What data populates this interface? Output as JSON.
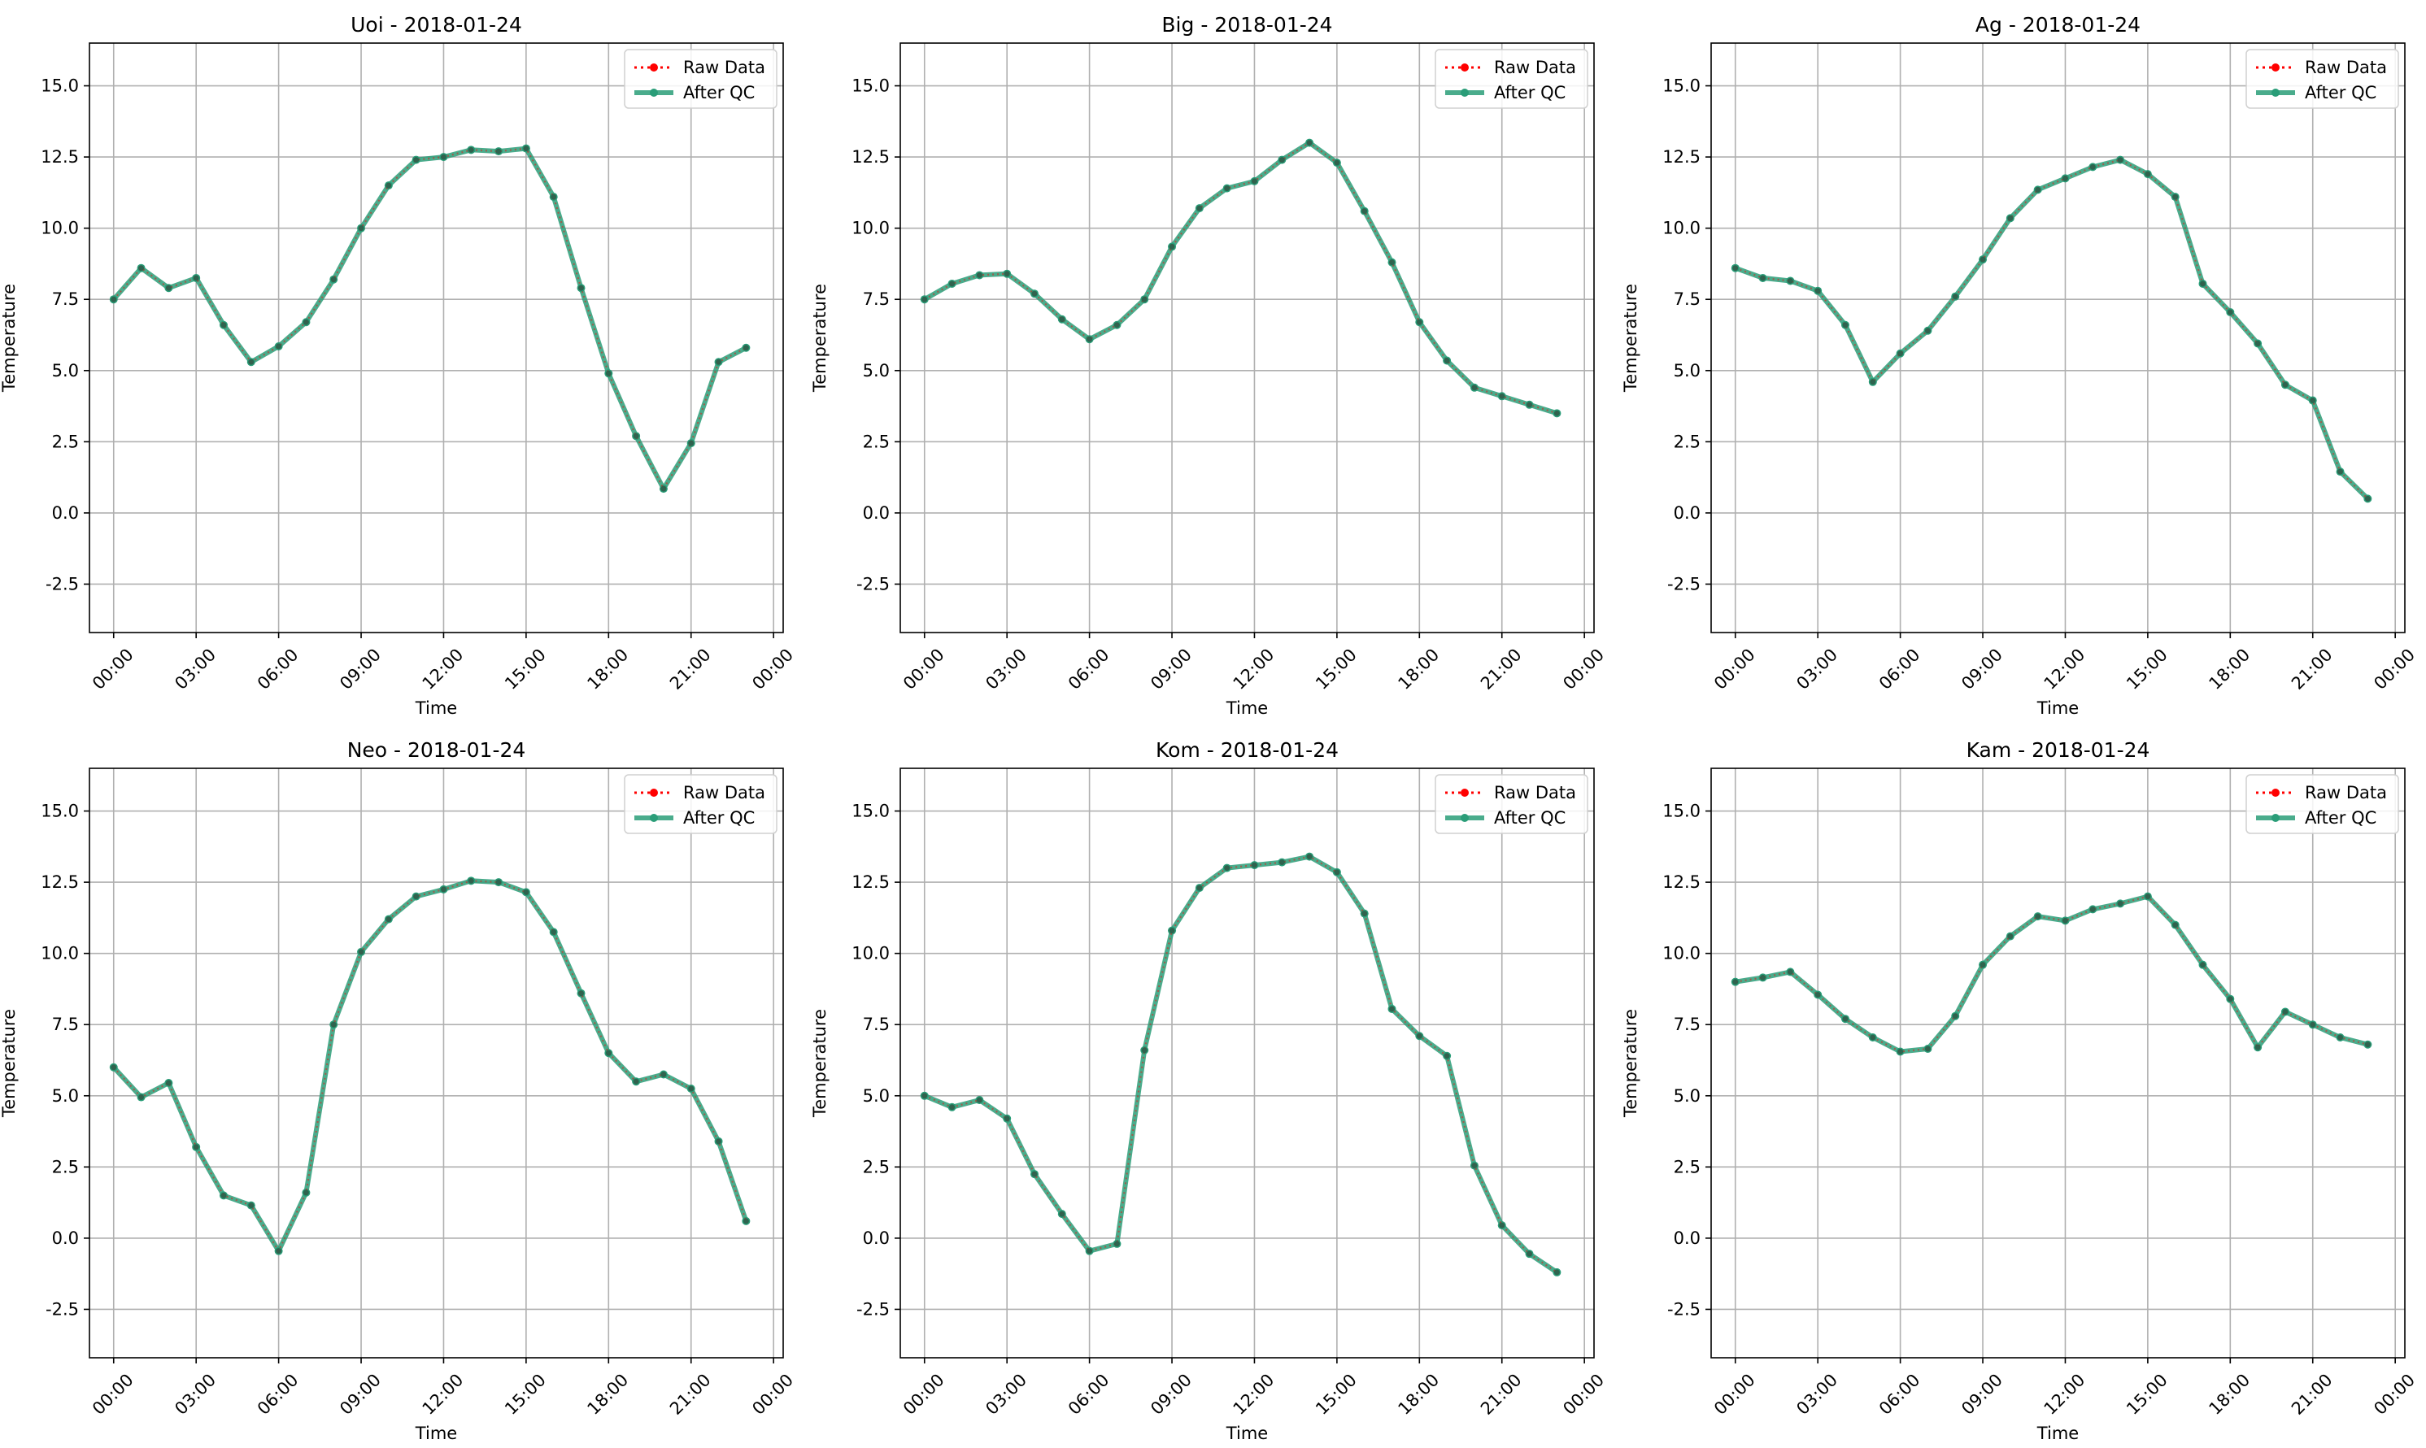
{
  "figure": {
    "legend_labels": {
      "raw": "Raw Data",
      "qc": "After QC"
    },
    "colors": {
      "raw": "#ff0000",
      "qc": "#2a9d78",
      "grid": "#b0b0b0",
      "axis": "#000000"
    }
  },
  "chart_data": [
    {
      "type": "line",
      "title": "Uoi - 2018-01-24",
      "xlabel": "Time",
      "ylabel": "Temperature",
      "ylim": [
        -4.2,
        16.5
      ],
      "yticks": [
        "-2.5",
        "0.0",
        "2.5",
        "5.0",
        "7.5",
        "10.0",
        "12.5",
        "15.0"
      ],
      "xticks": [
        "00:00",
        "03:00",
        "06:00",
        "09:00",
        "12:00",
        "15:00",
        "18:00",
        "21:00",
        "00:00"
      ],
      "grid": true,
      "legend_position": "top-right",
      "x": [
        "00:00",
        "01:00",
        "02:00",
        "03:00",
        "04:00",
        "05:00",
        "06:00",
        "07:00",
        "08:00",
        "09:00",
        "10:00",
        "11:00",
        "12:00",
        "13:00",
        "14:00",
        "15:00",
        "16:00",
        "17:00",
        "18:00",
        "19:00",
        "20:00",
        "21:00",
        "22:00",
        "23:00"
      ],
      "series": [
        {
          "name": "Raw Data",
          "values": [
            7.5,
            8.6,
            7.9,
            8.25,
            6.6,
            5.3,
            5.85,
            6.7,
            8.2,
            10.0,
            11.5,
            12.4,
            12.5,
            12.75,
            12.7,
            12.8,
            11.1,
            7.9,
            4.9,
            2.7,
            0.85,
            2.45,
            5.3,
            5.8
          ]
        },
        {
          "name": "After QC",
          "values": [
            7.5,
            8.6,
            7.9,
            8.25,
            6.6,
            5.3,
            5.85,
            6.7,
            8.2,
            10.0,
            11.5,
            12.4,
            12.5,
            12.75,
            12.7,
            12.8,
            11.1,
            7.9,
            4.9,
            2.7,
            0.85,
            2.45,
            5.3,
            5.8
          ]
        }
      ]
    },
    {
      "type": "line",
      "title": "Big - 2018-01-24",
      "xlabel": "Time",
      "ylabel": "Temperature",
      "ylim": [
        -4.2,
        16.5
      ],
      "yticks": [
        "-2.5",
        "0.0",
        "2.5",
        "5.0",
        "7.5",
        "10.0",
        "12.5",
        "15.0"
      ],
      "xticks": [
        "00:00",
        "03:00",
        "06:00",
        "09:00",
        "12:00",
        "15:00",
        "18:00",
        "21:00",
        "00:00"
      ],
      "grid": true,
      "legend_position": "top-right",
      "x": [
        "00:00",
        "01:00",
        "02:00",
        "03:00",
        "04:00",
        "05:00",
        "06:00",
        "07:00",
        "08:00",
        "09:00",
        "10:00",
        "11:00",
        "12:00",
        "13:00",
        "14:00",
        "15:00",
        "16:00",
        "17:00",
        "18:00",
        "19:00",
        "20:00",
        "21:00",
        "22:00",
        "23:00"
      ],
      "series": [
        {
          "name": "Raw Data",
          "values": [
            7.5,
            8.05,
            8.35,
            8.4,
            7.7,
            6.8,
            6.1,
            6.6,
            7.5,
            9.35,
            10.7,
            11.4,
            11.65,
            12.4,
            13.0,
            12.3,
            10.6,
            8.8,
            6.7,
            5.35,
            4.4,
            4.1,
            3.8,
            3.5
          ]
        },
        {
          "name": "After QC",
          "values": [
            7.5,
            8.05,
            8.35,
            8.4,
            7.7,
            6.8,
            6.1,
            6.6,
            7.5,
            9.35,
            10.7,
            11.4,
            11.65,
            12.4,
            13.0,
            12.3,
            10.6,
            8.8,
            6.7,
            5.35,
            4.4,
            4.1,
            3.8,
            3.5
          ]
        }
      ]
    },
    {
      "type": "line",
      "title": "Ag - 2018-01-24",
      "xlabel": "Time",
      "ylabel": "Temperature",
      "ylim": [
        -4.2,
        16.5
      ],
      "yticks": [
        "-2.5",
        "0.0",
        "2.5",
        "5.0",
        "7.5",
        "10.0",
        "12.5",
        "15.0"
      ],
      "xticks": [
        "00:00",
        "03:00",
        "06:00",
        "09:00",
        "12:00",
        "15:00",
        "18:00",
        "21:00",
        "00:00"
      ],
      "grid": true,
      "legend_position": "top-right",
      "x": [
        "00:00",
        "01:00",
        "02:00",
        "03:00",
        "04:00",
        "05:00",
        "06:00",
        "07:00",
        "08:00",
        "09:00",
        "10:00",
        "11:00",
        "12:00",
        "13:00",
        "14:00",
        "15:00",
        "16:00",
        "17:00",
        "18:00",
        "19:00",
        "20:00",
        "21:00",
        "22:00",
        "23:00"
      ],
      "series": [
        {
          "name": "Raw Data",
          "values": [
            8.6,
            8.25,
            8.15,
            7.8,
            6.6,
            4.6,
            5.6,
            6.4,
            7.6,
            8.9,
            10.35,
            11.35,
            11.75,
            12.15,
            12.4,
            11.9,
            11.1,
            8.05,
            7.05,
            5.95,
            4.5,
            3.95,
            1.45,
            0.5
          ]
        },
        {
          "name": "After QC",
          "values": [
            8.6,
            8.25,
            8.15,
            7.8,
            6.6,
            4.6,
            5.6,
            6.4,
            7.6,
            8.9,
            10.35,
            11.35,
            11.75,
            12.15,
            12.4,
            11.9,
            11.1,
            8.05,
            7.05,
            5.95,
            4.5,
            3.95,
            1.45,
            0.5
          ]
        }
      ]
    },
    {
      "type": "line",
      "title": "Neo - 2018-01-24",
      "xlabel": "Time",
      "ylabel": "Temperature",
      "ylim": [
        -4.2,
        16.5
      ],
      "yticks": [
        "-2.5",
        "0.0",
        "2.5",
        "5.0",
        "7.5",
        "10.0",
        "12.5",
        "15.0"
      ],
      "xticks": [
        "00:00",
        "03:00",
        "06:00",
        "09:00",
        "12:00",
        "15:00",
        "18:00",
        "21:00",
        "00:00"
      ],
      "grid": true,
      "legend_position": "top-right",
      "x": [
        "00:00",
        "01:00",
        "02:00",
        "03:00",
        "04:00",
        "05:00",
        "06:00",
        "07:00",
        "08:00",
        "09:00",
        "10:00",
        "11:00",
        "12:00",
        "13:00",
        "14:00",
        "15:00",
        "16:00",
        "17:00",
        "18:00",
        "19:00",
        "20:00",
        "21:00",
        "22:00",
        "23:00"
      ],
      "series": [
        {
          "name": "Raw Data",
          "values": [
            6.0,
            4.95,
            5.45,
            3.2,
            1.5,
            1.15,
            -0.45,
            1.6,
            7.5,
            10.05,
            11.2,
            12.0,
            12.25,
            12.55,
            12.5,
            12.15,
            10.75,
            8.6,
            6.5,
            5.5,
            5.75,
            5.25,
            3.4,
            0.6
          ]
        },
        {
          "name": "After QC",
          "values": [
            6.0,
            4.95,
            5.45,
            3.2,
            1.5,
            1.15,
            -0.45,
            1.6,
            7.5,
            10.05,
            11.2,
            12.0,
            12.25,
            12.55,
            12.5,
            12.15,
            10.75,
            8.6,
            6.5,
            5.5,
            5.75,
            5.25,
            3.4,
            0.6
          ]
        }
      ]
    },
    {
      "type": "line",
      "title": "Kom - 2018-01-24",
      "xlabel": "Time",
      "ylabel": "Temperature",
      "ylim": [
        -4.2,
        16.5
      ],
      "yticks": [
        "-2.5",
        "0.0",
        "2.5",
        "5.0",
        "7.5",
        "10.0",
        "12.5",
        "15.0"
      ],
      "xticks": [
        "00:00",
        "03:00",
        "06:00",
        "09:00",
        "12:00",
        "15:00",
        "18:00",
        "21:00",
        "00:00"
      ],
      "grid": true,
      "legend_position": "top-right",
      "x": [
        "00:00",
        "01:00",
        "02:00",
        "03:00",
        "04:00",
        "05:00",
        "06:00",
        "07:00",
        "08:00",
        "09:00",
        "10:00",
        "11:00",
        "12:00",
        "13:00",
        "14:00",
        "15:00",
        "16:00",
        "17:00",
        "18:00",
        "19:00",
        "20:00",
        "21:00",
        "22:00",
        "23:00"
      ],
      "series": [
        {
          "name": "Raw Data",
          "values": [
            5.0,
            4.6,
            4.85,
            4.2,
            2.25,
            0.85,
            -0.45,
            -0.2,
            6.6,
            10.8,
            12.3,
            13.0,
            13.1,
            13.2,
            13.4,
            12.85,
            11.4,
            8.05,
            7.1,
            6.4,
            2.55,
            0.45,
            -0.55,
            -1.2
          ]
        },
        {
          "name": "After QC",
          "values": [
            5.0,
            4.6,
            4.85,
            4.2,
            2.25,
            0.85,
            -0.45,
            -0.2,
            6.6,
            10.8,
            12.3,
            13.0,
            13.1,
            13.2,
            13.4,
            12.85,
            11.4,
            8.05,
            7.1,
            6.4,
            2.55,
            0.45,
            -0.55,
            -1.2
          ]
        }
      ]
    },
    {
      "type": "line",
      "title": "Kam - 2018-01-24",
      "xlabel": "Time",
      "ylabel": "Temperature",
      "ylim": [
        -4.2,
        16.5
      ],
      "yticks": [
        "-2.5",
        "0.0",
        "2.5",
        "5.0",
        "7.5",
        "10.0",
        "12.5",
        "15.0"
      ],
      "xticks": [
        "00:00",
        "03:00",
        "06:00",
        "09:00",
        "12:00",
        "15:00",
        "18:00",
        "21:00",
        "00:00"
      ],
      "grid": true,
      "legend_position": "top-right",
      "x": [
        "00:00",
        "01:00",
        "02:00",
        "03:00",
        "04:00",
        "05:00",
        "06:00",
        "07:00",
        "08:00",
        "09:00",
        "10:00",
        "11:00",
        "12:00",
        "13:00",
        "14:00",
        "15:00",
        "16:00",
        "17:00",
        "18:00",
        "19:00",
        "20:00",
        "21:00",
        "22:00",
        "23:00"
      ],
      "series": [
        {
          "name": "Raw Data",
          "values": [
            9.0,
            9.15,
            9.35,
            8.55,
            7.7,
            7.05,
            6.55,
            6.65,
            7.8,
            9.6,
            10.6,
            11.3,
            11.15,
            11.55,
            11.75,
            12.0,
            11.0,
            9.6,
            8.4,
            6.7,
            7.95,
            7.5,
            7.05,
            6.8
          ]
        },
        {
          "name": "After QC",
          "values": [
            9.0,
            9.15,
            9.35,
            8.55,
            7.7,
            7.05,
            6.55,
            6.65,
            7.8,
            9.6,
            10.6,
            11.3,
            11.15,
            11.55,
            11.75,
            12.0,
            11.0,
            9.6,
            8.4,
            6.7,
            7.95,
            7.5,
            7.05,
            6.8
          ]
        }
      ]
    }
  ]
}
